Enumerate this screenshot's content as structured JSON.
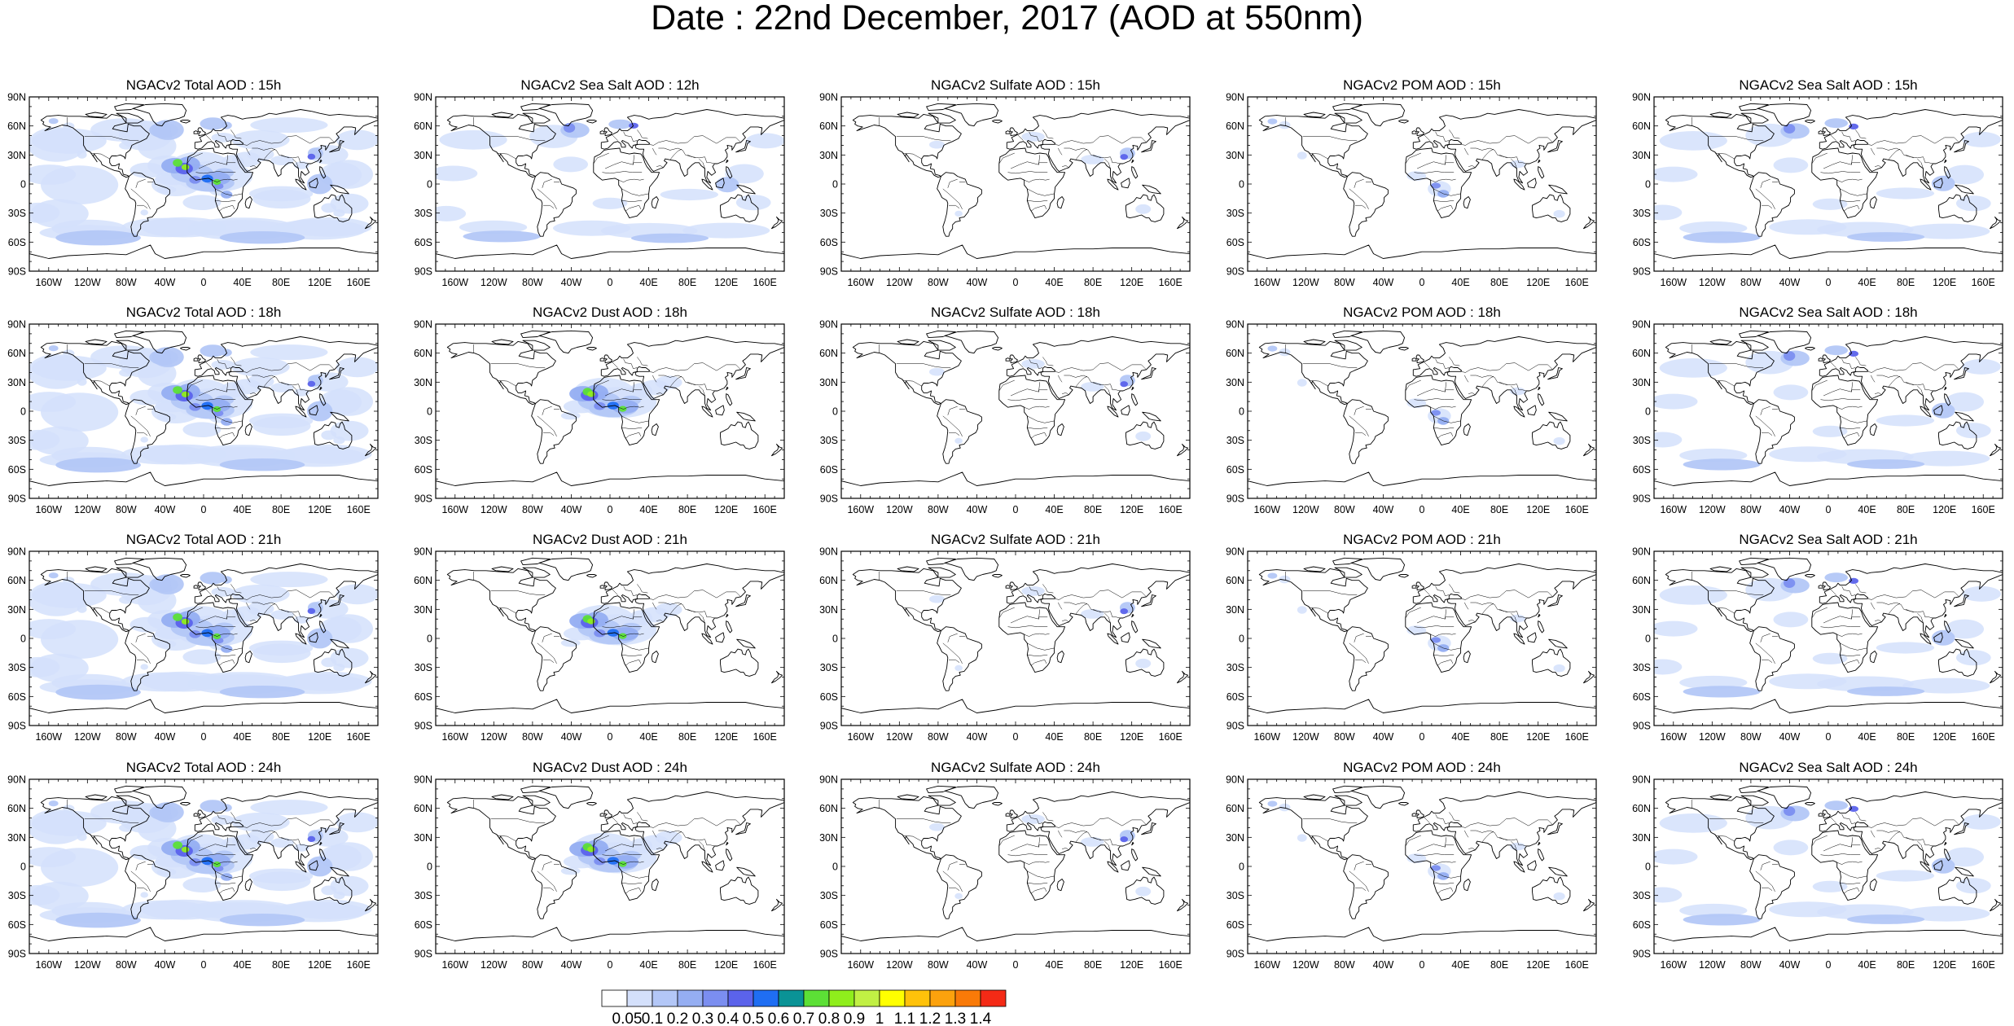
{
  "title": "Date : 22nd December, 2017 (AOD at 550nm)",
  "lat_ticks": [
    "90N",
    "60N",
    "30N",
    "0",
    "30S",
    "60S",
    "90S"
  ],
  "lon_ticks": [
    "160W",
    "120W",
    "80W",
    "40W",
    "0",
    "40E",
    "80E",
    "120E",
    "160E"
  ],
  "rows": [
    [
      "NGACv2 Total AOD : 15h",
      "NGACv2 Sea Salt  AOD : 12h",
      "NGACv2 Sulfate AOD : 15h",
      "NGACv2 POM AOD : 15h",
      "NGACv2 Sea Salt AOD : 15h"
    ],
    [
      "NGACv2 Total AOD : 18h",
      "NGACv2 Dust AOD : 18h",
      "NGACv2 Sulfate AOD : 18h",
      "NGACv2 POM AOD : 18h",
      "NGACv2 Sea Salt AOD : 18h"
    ],
    [
      "NGACv2 Total AOD : 21h",
      "NGACv2 Dust AOD : 21h",
      "NGACv2 Sulfate AOD : 21h",
      "NGACv2 POM AOD : 21h",
      "NGACv2 Sea Salt AOD : 21h"
    ],
    [
      "NGACv2 Total AOD : 24h",
      "NGACv2 Dust AOD : 24h",
      "NGACv2 Sulfate AOD : 24h",
      "NGACv2 POM AOD : 24h",
      "NGACv2 Sea Salt AOD : 24h"
    ]
  ],
  "colorbar": {
    "labels": [
      "0.05",
      "0.1",
      "0.2",
      "0.3",
      "0.4",
      "0.5",
      "0.6",
      "0.7",
      "0.8",
      "0.9",
      "1",
      "1.1",
      "1.2",
      "1.3",
      "1.4"
    ],
    "colors": [
      "#ffffff",
      "#d4e0fb",
      "#b3c7f7",
      "#95aef2",
      "#7b8ef0",
      "#5b63eb",
      "#1f6ef3",
      "#0a9396",
      "#5ce036",
      "#8fee1c",
      "#c1f044",
      "#ffff00",
      "#ffc20a",
      "#fca20d",
      "#f97a08",
      "#f42a16"
    ]
  },
  "colors": {
    "coast": "#000000",
    "frame": "#000000"
  }
}
